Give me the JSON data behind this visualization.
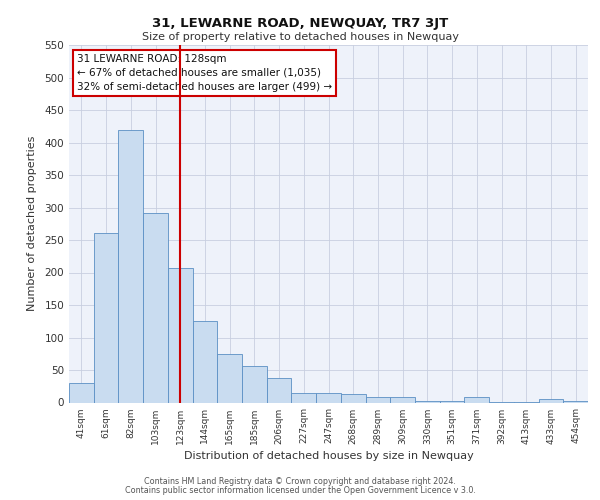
{
  "title": "31, LEWARNE ROAD, NEWQUAY, TR7 3JT",
  "subtitle": "Size of property relative to detached houses in Newquay",
  "xlabel": "Distribution of detached houses by size in Newquay",
  "ylabel": "Number of detached properties",
  "bar_labels": [
    "41sqm",
    "61sqm",
    "82sqm",
    "103sqm",
    "123sqm",
    "144sqm",
    "165sqm",
    "185sqm",
    "206sqm",
    "227sqm",
    "247sqm",
    "268sqm",
    "289sqm",
    "309sqm",
    "330sqm",
    "351sqm",
    "371sqm",
    "392sqm",
    "413sqm",
    "433sqm",
    "454sqm"
  ],
  "bar_values": [
    30,
    261,
    420,
    291,
    207,
    126,
    75,
    56,
    38,
    15,
    15,
    13,
    8,
    8,
    3,
    2,
    8,
    1,
    1,
    5,
    2
  ],
  "bar_color": "#c9dcf0",
  "bar_edge_color": "#5b8fc4",
  "vline_x_index": 4,
  "vline_color": "#cc0000",
  "annotation_title": "31 LEWARNE ROAD: 128sqm",
  "annotation_line1": "← 67% of detached houses are smaller (1,035)",
  "annotation_line2": "32% of semi-detached houses are larger (499) →",
  "annotation_box_edgecolor": "#cc0000",
  "ylim": [
    0,
    550
  ],
  "yticks": [
    0,
    50,
    100,
    150,
    200,
    250,
    300,
    350,
    400,
    450,
    500,
    550
  ],
  "plot_bg_color": "#eef2fa",
  "grid_color": "#c8cfe0",
  "footer1": "Contains HM Land Registry data © Crown copyright and database right 2024.",
  "footer2": "Contains public sector information licensed under the Open Government Licence v 3.0."
}
